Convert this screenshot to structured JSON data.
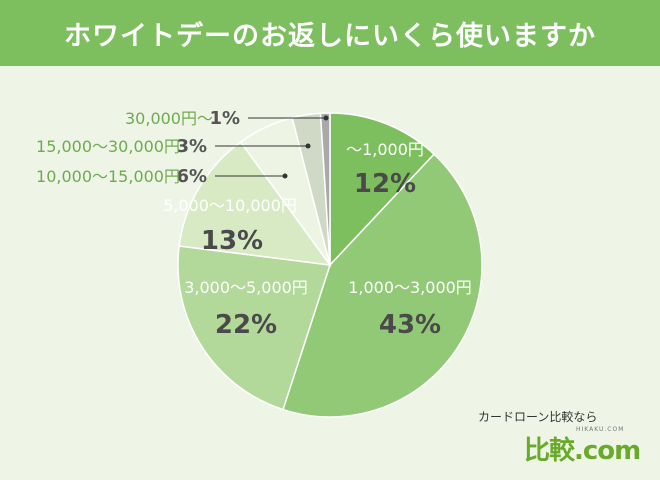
{
  "header": {
    "title": "ホワイトデーのお返しにいくら使いますか"
  },
  "chart_data": {
    "type": "pie",
    "title": "ホワイトデーのお返しにいくら使いますか",
    "slices": [
      {
        "label": "〜1,000円",
        "value": 12,
        "pct_text": "12%",
        "color": "#7dbf5e"
      },
      {
        "label": "1,000〜3,000円",
        "value": 43,
        "pct_text": "43%",
        "color": "#92c976"
      },
      {
        "label": "3,000〜5,000円",
        "value": 22,
        "pct_text": "22%",
        "color": "#b2d89a"
      },
      {
        "label": "5,000〜10,000円",
        "value": 13,
        "pct_text": "13%",
        "color": "#d8eac4"
      },
      {
        "label": "10,000〜15,000円",
        "value": 6,
        "pct_text": "6%",
        "color": "#eef4e4"
      },
      {
        "label": "15,000〜30,000円",
        "value": 3,
        "pct_text": "3%",
        "color": "#cfd9c6"
      },
      {
        "label": "30,000円〜",
        "value": 1,
        "pct_text": "1%",
        "color": "#a9a9a9"
      }
    ],
    "label_colors": {
      "inside_name": "#ffffff",
      "inside_pct": "#4a4a4a",
      "outside_name": "#6faa4f",
      "outside_pct": "#555555"
    }
  },
  "brand": {
    "tagline": "カードローン比較なら",
    "logo": "比較.com",
    "sub": "HIKAKU.COM"
  }
}
